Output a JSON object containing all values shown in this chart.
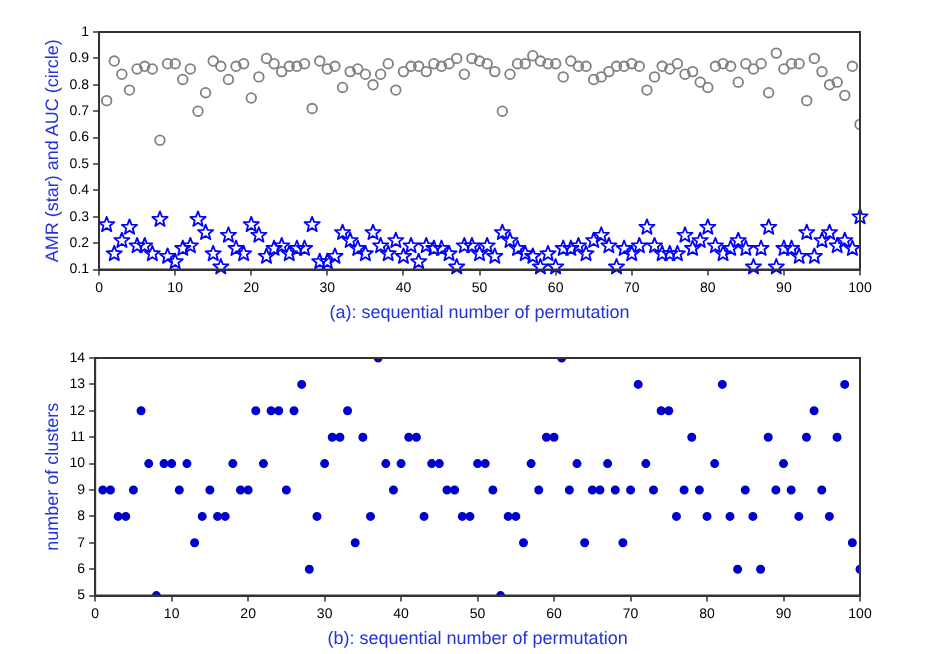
{
  "chart_data": [
    {
      "type": "scatter",
      "xlabel": "(a): sequential number of permutation",
      "ylabel": "AMR (star) and AUC (circle)",
      "xlim": [
        0,
        100
      ],
      "xticks": [
        0,
        10,
        20,
        30,
        40,
        50,
        60,
        70,
        80,
        90,
        100
      ],
      "ylim": [
        0.1,
        1
      ],
      "yticks": [
        0.1,
        0.2,
        0.3,
        0.4,
        0.5,
        0.6,
        0.7,
        0.8,
        0.9,
        1
      ],
      "grid": false,
      "legend": false,
      "x": [
        1,
        2,
        3,
        4,
        5,
        6,
        7,
        8,
        9,
        10,
        11,
        12,
        13,
        14,
        15,
        16,
        17,
        18,
        19,
        20,
        21,
        22,
        23,
        24,
        25,
        26,
        27,
        28,
        29,
        30,
        31,
        32,
        33,
        34,
        35,
        36,
        37,
        38,
        39,
        40,
        41,
        42,
        43,
        44,
        45,
        46,
        47,
        48,
        49,
        50,
        51,
        52,
        53,
        54,
        55,
        56,
        57,
        58,
        59,
        60,
        61,
        62,
        63,
        64,
        65,
        66,
        67,
        68,
        69,
        70,
        71,
        72,
        73,
        74,
        75,
        76,
        77,
        78,
        79,
        80,
        81,
        82,
        83,
        84,
        85,
        86,
        87,
        88,
        89,
        90,
        91,
        92,
        93,
        94,
        95,
        96,
        97,
        98,
        99,
        100
      ],
      "series": [
        {
          "color": "#808080",
          "marker": "circle",
          "values": [
            0.74,
            0.89,
            0.84,
            0.78,
            0.86,
            0.87,
            0.86,
            0.59,
            0.88,
            0.88,
            0.82,
            0.86,
            0.7,
            0.77,
            0.89,
            0.87,
            0.82,
            0.87,
            0.88,
            0.75,
            0.83,
            0.9,
            0.88,
            0.85,
            0.87,
            0.87,
            0.88,
            0.71,
            0.89,
            0.86,
            0.87,
            0.79,
            0.85,
            0.86,
            0.84,
            0.8,
            0.84,
            0.88,
            0.78,
            0.85,
            0.87,
            0.87,
            0.85,
            0.88,
            0.87,
            0.88,
            0.9,
            0.84,
            0.9,
            0.89,
            0.88,
            0.85,
            0.7,
            0.84,
            0.88,
            0.88,
            0.91,
            0.89,
            0.88,
            0.88,
            0.83,
            0.89,
            0.87,
            0.87,
            0.82,
            0.83,
            0.85,
            0.87,
            0.87,
            0.88,
            0.87,
            0.78,
            0.83,
            0.87,
            0.86,
            0.88,
            0.84,
            0.85,
            0.81,
            0.79,
            0.87,
            0.88,
            0.87,
            0.81,
            0.88,
            0.86,
            0.88,
            0.77,
            0.92,
            0.86,
            0.88,
            0.88,
            0.74,
            0.9,
            0.85,
            0.8,
            0.81,
            0.76,
            0.87,
            0.65
          ]
        },
        {
          "color": "#0000ff",
          "marker": "star",
          "values": [
            0.27,
            0.16,
            0.21,
            0.26,
            0.19,
            0.19,
            0.16,
            0.29,
            0.15,
            0.13,
            0.18,
            0.19,
            0.29,
            0.24,
            0.16,
            0.11,
            0.23,
            0.18,
            0.16,
            0.27,
            0.23,
            0.15,
            0.18,
            0.19,
            0.16,
            0.18,
            0.18,
            0.27,
            0.13,
            0.13,
            0.15,
            0.24,
            0.21,
            0.18,
            0.16,
            0.24,
            0.19,
            0.16,
            0.21,
            0.15,
            0.19,
            0.13,
            0.19,
            0.18,
            0.18,
            0.16,
            0.11,
            0.19,
            0.19,
            0.16,
            0.19,
            0.15,
            0.24,
            0.21,
            0.18,
            0.16,
            0.15,
            0.11,
            0.16,
            0.11,
            0.18,
            0.18,
            0.19,
            0.16,
            0.21,
            0.23,
            0.19,
            0.11,
            0.18,
            0.16,
            0.19,
            0.26,
            0.19,
            0.16,
            0.16,
            0.16,
            0.23,
            0.18,
            0.21,
            0.26,
            0.19,
            0.16,
            0.18,
            0.21,
            0.18,
            0.11,
            0.18,
            0.26,
            0.11,
            0.18,
            0.18,
            0.15,
            0.24,
            0.15,
            0.21,
            0.24,
            0.19,
            0.21,
            0.18,
            0.3
          ]
        }
      ]
    },
    {
      "type": "scatter",
      "xlabel": "(b): sequential number of permutation",
      "ylabel": "number of clusters",
      "xlim": [
        0,
        100
      ],
      "xticks": [
        0,
        10,
        20,
        30,
        40,
        50,
        60,
        70,
        80,
        90,
        100
      ],
      "ylim": [
        5,
        14
      ],
      "yticks": [
        5,
        6,
        7,
        8,
        9,
        10,
        11,
        12,
        13,
        14
      ],
      "grid": false,
      "legend": false,
      "x": [
        1,
        2,
        3,
        4,
        5,
        6,
        7,
        8,
        9,
        10,
        11,
        12,
        13,
        14,
        15,
        16,
        17,
        18,
        19,
        20,
        21,
        22,
        23,
        24,
        25,
        26,
        27,
        28,
        29,
        30,
        31,
        32,
        33,
        34,
        35,
        36,
        37,
        38,
        39,
        40,
        41,
        42,
        43,
        44,
        45,
        46,
        47,
        48,
        49,
        50,
        51,
        52,
        53,
        54,
        55,
        56,
        57,
        58,
        59,
        60,
        61,
        62,
        63,
        64,
        65,
        66,
        67,
        68,
        69,
        70,
        71,
        72,
        73,
        74,
        75,
        76,
        77,
        78,
        79,
        80,
        81,
        82,
        83,
        84,
        85,
        86,
        87,
        88,
        89,
        90,
        91,
        92,
        93,
        94,
        95,
        96,
        97,
        98,
        99,
        100
      ],
      "series": [
        {
          "color": "#0000cc",
          "marker": "circle",
          "values": [
            9,
            9,
            8,
            8,
            9,
            12,
            10,
            5,
            10,
            10,
            9,
            10,
            7,
            8,
            9,
            8,
            8,
            10,
            9,
            9,
            12,
            10,
            12,
            12,
            9,
            12,
            13,
            6,
            8,
            10,
            11,
            11,
            12,
            7,
            11,
            8,
            14,
            10,
            9,
            10,
            11,
            11,
            8,
            10,
            10,
            9,
            9,
            8,
            8,
            10,
            10,
            9,
            5,
            8,
            8,
            7,
            10,
            9,
            11,
            11,
            14,
            9,
            10,
            7,
            9,
            9,
            10,
            9,
            7,
            9,
            13,
            10,
            9,
            12,
            12,
            8,
            9,
            11,
            9,
            8,
            10,
            13,
            8,
            6,
            9,
            8,
            6,
            11,
            9,
            10,
            9,
            8,
            11,
            12,
            9,
            8,
            11,
            13,
            7,
            6
          ]
        }
      ]
    }
  ]
}
